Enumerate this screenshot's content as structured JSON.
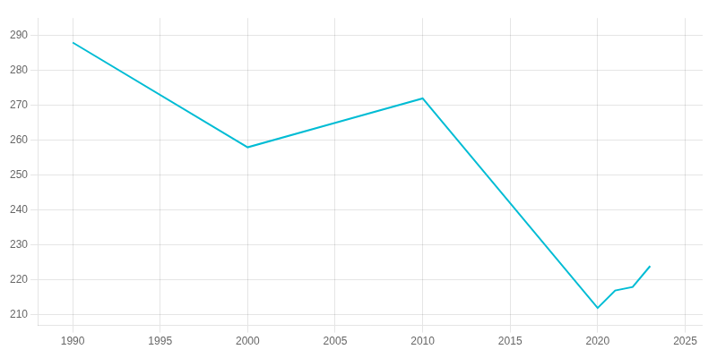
{
  "chart_data": {
    "type": "line",
    "x": [
      1990,
      2000,
      2005,
      2010,
      2020,
      2021,
      2022,
      2023
    ],
    "values": [
      288,
      258,
      265,
      272,
      212,
      217,
      218,
      224
    ],
    "color": "#00bcd4",
    "xlim": [
      1988,
      2026
    ],
    "xticks": [
      1990,
      1995,
      2000,
      2005,
      2010,
      2015,
      2020,
      2025
    ],
    "ylim": [
      207,
      295
    ],
    "yticks": [
      210,
      220,
      230,
      240,
      250,
      260,
      270,
      280,
      290
    ],
    "grid": true
  }
}
